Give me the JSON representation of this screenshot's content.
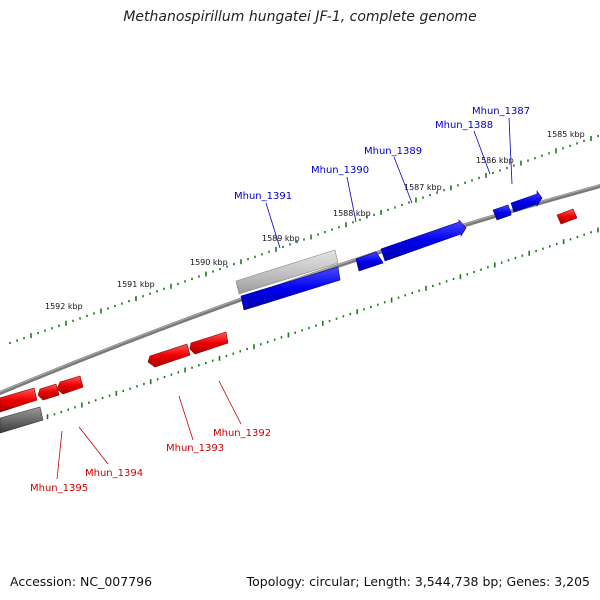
{
  "title": "Methanospirillum hungatei JF-1, complete genome",
  "accession": "Accession: NC_007796",
  "summary": "Topology: circular; Length: 3,544,738 bp; Genes: 3,205",
  "colors": {
    "forward_strand": "#0000ee",
    "reverse_strand": "#ee0000",
    "tick": "#1a7a1a",
    "backbone": "#777777"
  },
  "kbp_labels": [
    "1585 kbp",
    "1586 kbp",
    "1587 kbp",
    "1588 kbp",
    "1589 kbp",
    "1590 kbp",
    "1591 kbp",
    "1592 kbp"
  ],
  "forward_genes": [
    "Mhun_1387",
    "Mhun_1388",
    "Mhun_1389",
    "Mhun_1390",
    "Mhun_1391"
  ],
  "reverse_genes": [
    "Mhun_1392",
    "Mhun_1393",
    "Mhun_1394",
    "Mhun_1395"
  ]
}
